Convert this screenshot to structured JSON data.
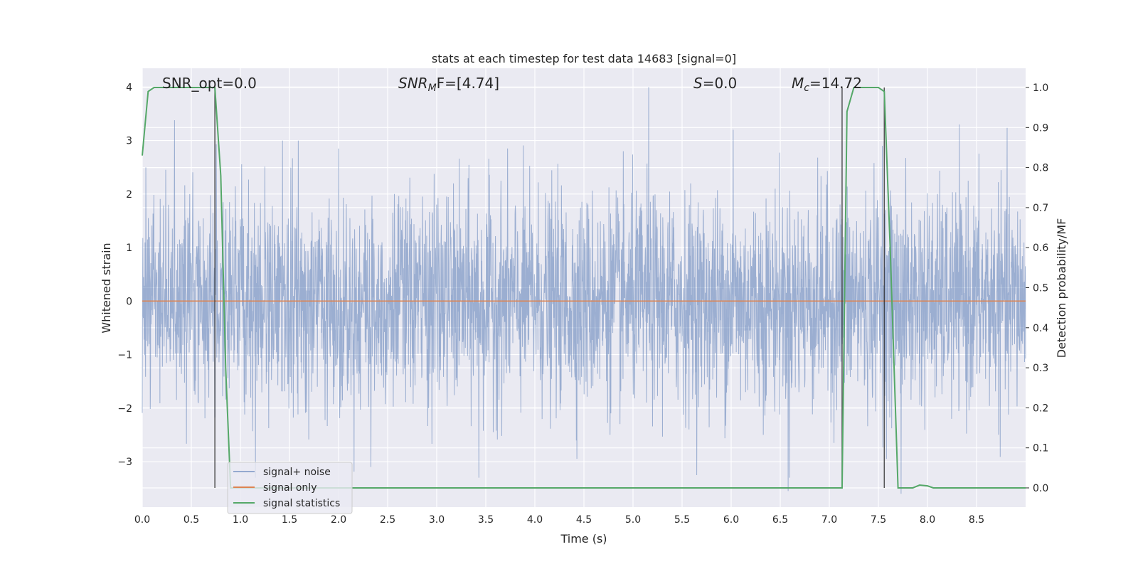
{
  "chart_data": {
    "type": "line",
    "title": "stats at each timestep for test data 14683 [signal=0]",
    "xlabel": "Time (s)",
    "ylabel": "Whitened strain",
    "y2label": "Detection probability/MF",
    "xlim": [
      0,
      9
    ],
    "ylim": [
      -3.85,
      4.35
    ],
    "y2lim": [
      -0.048,
      1.048
    ],
    "x_ticks": [
      "0.0",
      "0.5",
      "1.0",
      "1.5",
      "2.0",
      "2.5",
      "3.0",
      "3.5",
      "4.0",
      "4.5",
      "5.0",
      "5.5",
      "6.0",
      "6.5",
      "7.0",
      "7.5",
      "8.0",
      "8.5"
    ],
    "y_ticks": [
      "−3",
      "−2",
      "−1",
      "0",
      "1",
      "2",
      "3",
      "4"
    ],
    "y2_ticks": [
      "0.0",
      "0.1",
      "0.2",
      "0.3",
      "0.4",
      "0.5",
      "0.6",
      "0.7",
      "0.8",
      "0.9",
      "1.0"
    ],
    "grid": true,
    "legend_position": "lower-left",
    "annotations": {
      "snr_opt": "SNR_opt=0.0",
      "snr_mf_base": "SNR",
      "snr_mf_sub": "M",
      "snr_mf_rest": "F=[4.74]",
      "s_italic": "S",
      "s_rest": "=0.0",
      "mc_base": "M",
      "mc_sub": "c",
      "mc_rest": "=14.72"
    },
    "series": [
      {
        "name": "signal+ noise",
        "color": "#4c72b0",
        "axis": "left",
        "description_values": "whitened noise, approx. zero mean, |y| up to ~4; dense trace from 0 to 9 s",
        "peaks": [
          {
            "x": 0.33,
            "y": 3.38
          },
          {
            "x": 1.43,
            "y": 3.0
          },
          {
            "x": 1.59,
            "y": 3.0
          },
          {
            "x": 2.0,
            "y": 2.85
          },
          {
            "x": 5.16,
            "y": 4.0
          },
          {
            "x": 6.02,
            "y": 3.2
          },
          {
            "x": 7.54,
            "y": 2.9
          },
          {
            "x": 3.43,
            "y": -3.3
          },
          {
            "x": 6.58,
            "y": -3.55
          },
          {
            "x": 7.73,
            "y": -3.6
          },
          {
            "x": 2.33,
            "y": -3.1
          }
        ]
      },
      {
        "name": "signal only",
        "color": "#dd8452",
        "axis": "left",
        "x": [
          0,
          9
        ],
        "y": [
          0,
          0
        ]
      },
      {
        "name": "signal statistics",
        "color": "#55a868",
        "axis": "right",
        "x": [
          0,
          0.06,
          0.12,
          0.5,
          0.68,
          0.74,
          0.8,
          0.85,
          0.9,
          1.0,
          2.0,
          4.0,
          6.0,
          7.0,
          7.07,
          7.13,
          7.18,
          7.25,
          7.5,
          7.56,
          7.62,
          7.7,
          7.85,
          7.92,
          8.0,
          8.06,
          8.5,
          9.0
        ],
        "y": [
          0.83,
          0.99,
          1.0,
          1.0,
          1.0,
          1.0,
          0.78,
          0.3,
          0.0,
          0.0,
          0.0,
          0.0,
          0.0,
          0.0,
          0.0,
          0.0,
          0.94,
          1.0,
          1.0,
          0.99,
          0.6,
          0.0,
          0.0,
          0.007,
          0.005,
          0.0,
          0.0,
          0.0
        ]
      }
    ],
    "vertical_markers_s": [
      0.74,
      7.13,
      7.56
    ]
  },
  "legend": {
    "items": [
      {
        "label": "signal+ noise",
        "color": "#4c72b0"
      },
      {
        "label": "signal only",
        "color": "#dd8452"
      },
      {
        "label": "signal statistics",
        "color": "#55a868"
      }
    ]
  }
}
